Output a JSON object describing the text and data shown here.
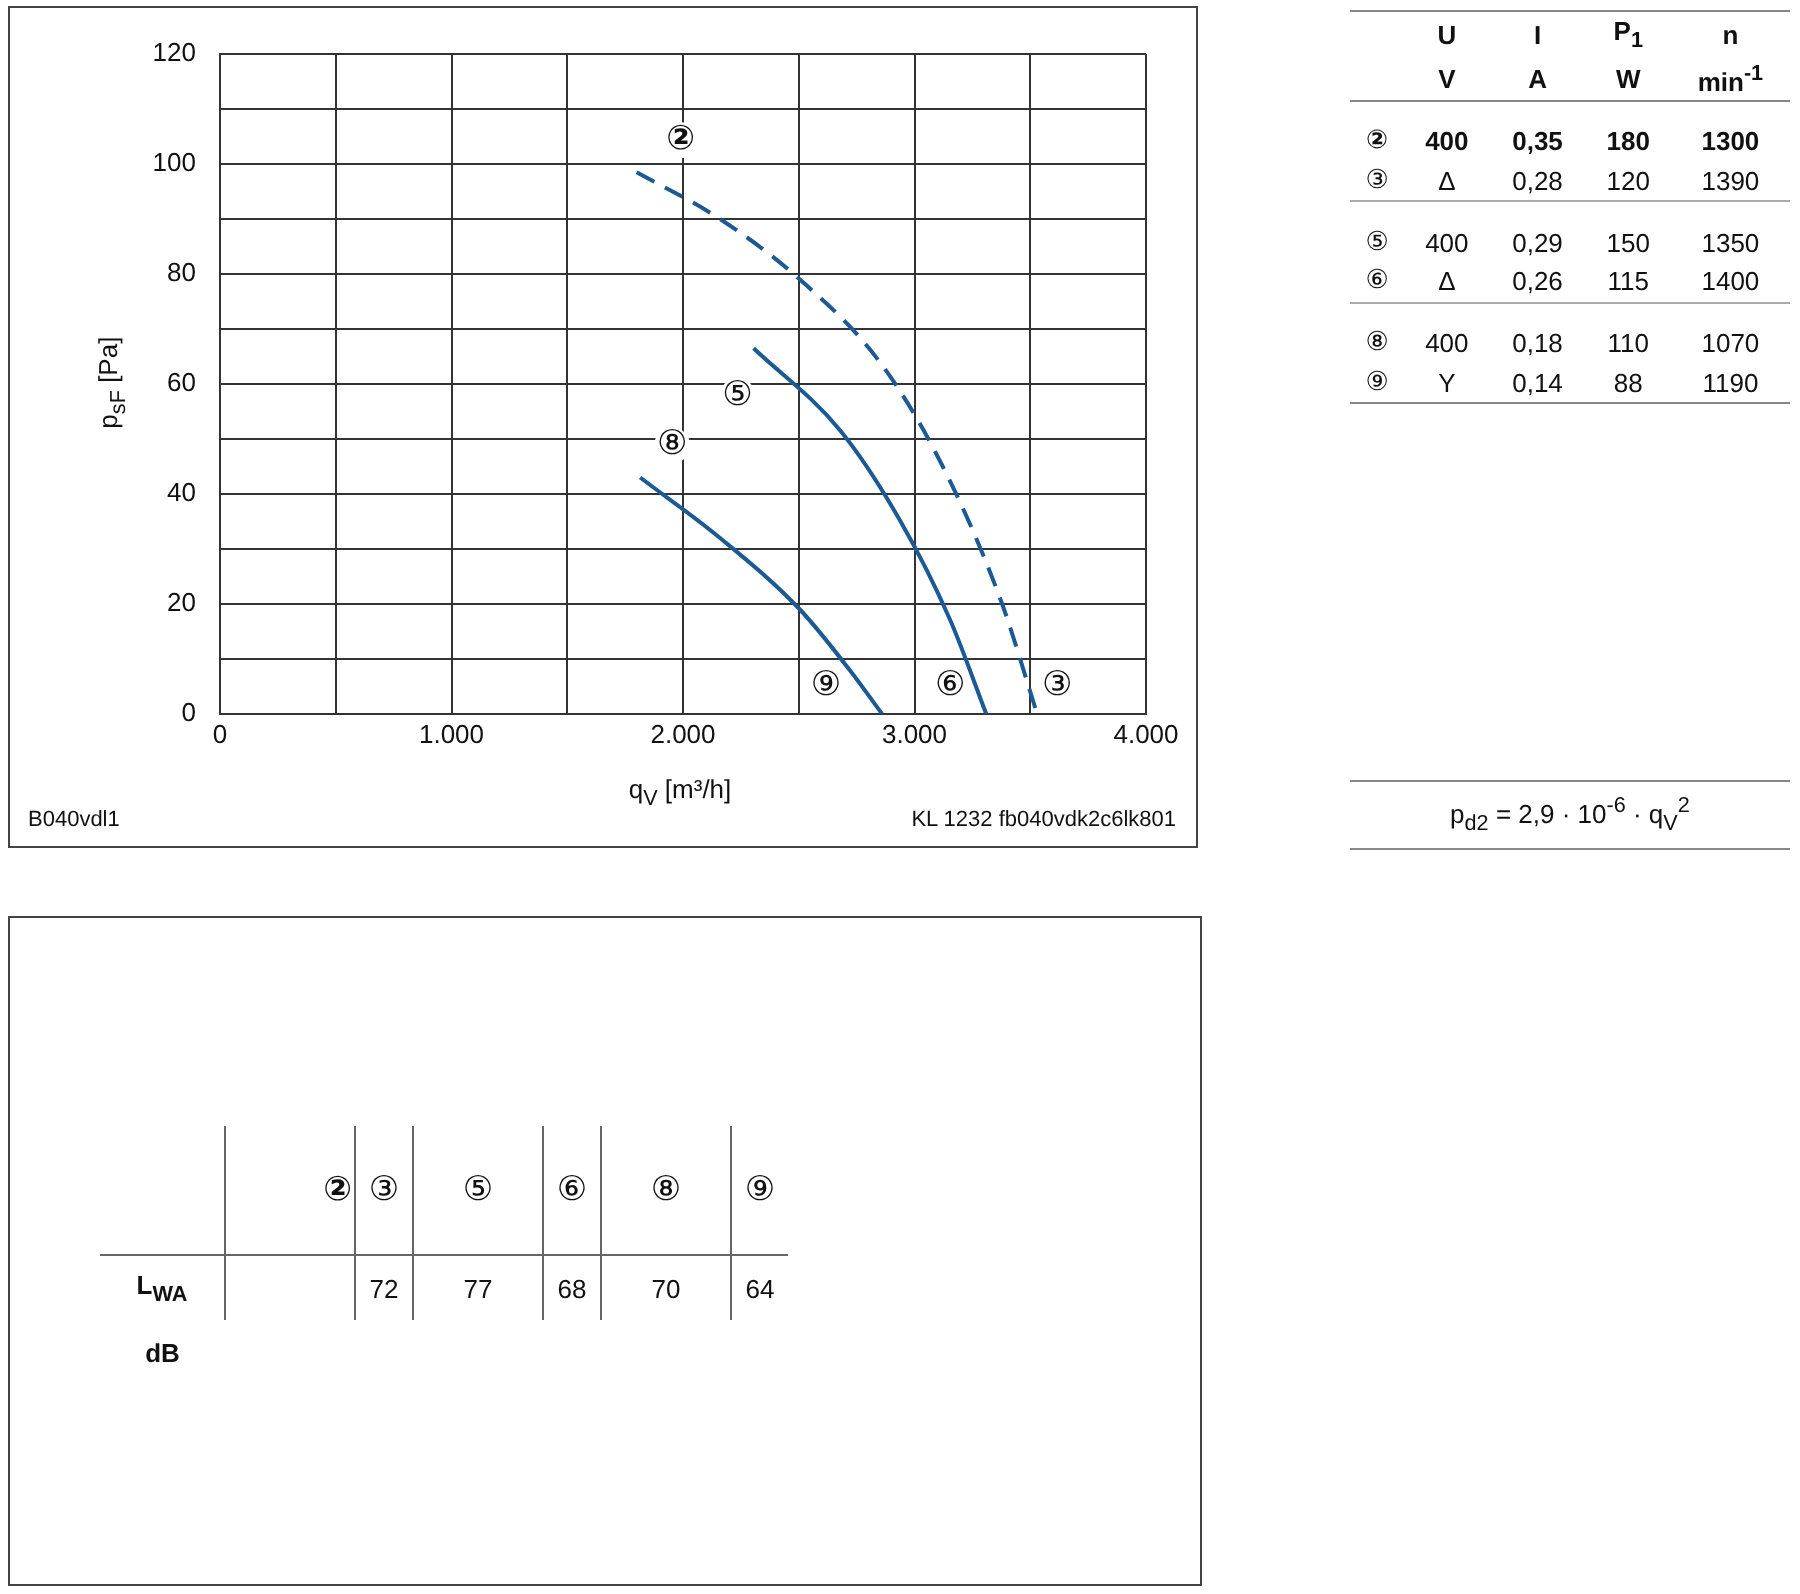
{
  "chart_data": {
    "type": "line",
    "xlabel": "q$_{V}$ [m³/h]",
    "ylabel": "p$_{sF}$ [Pa]",
    "xlim": [
      0,
      4000
    ],
    "ylim": [
      0,
      120
    ],
    "xticks": [
      0,
      {
        "value": 500,
        "label": null
      },
      {
        "value": 1000,
        "label": "1.000"
      },
      {
        "value": 1500,
        "label": null
      },
      {
        "value": 2000,
        "label": "2.000"
      },
      {
        "value": 2500,
        "label": null
      },
      {
        "value": 3000,
        "label": "3.000"
      },
      {
        "value": 3500,
        "label": null
      },
      {
        "value": 4000,
        "label": "4.000"
      }
    ],
    "yticks": [
      0,
      {
        "value": 10,
        "label": null
      },
      20,
      {
        "value": 30,
        "label": null
      },
      40,
      {
        "value": 50,
        "label": null
      },
      60,
      {
        "value": 70,
        "label": null
      },
      80,
      {
        "value": 90,
        "label": null
      },
      100,
      {
        "value": 110,
        "label": null
      },
      120
    ],
    "grid": true,
    "legend": false,
    "marker": "none",
    "series": [
      {
        "color": "#1b5a94",
        "line_style": "dashed",
        "x": [
          1800,
          2160,
          2505,
          2850,
          3110,
          3370,
          3530
        ],
        "values": [
          98.5,
          90,
          79,
          64,
          46,
          21,
          0
        ]
      },
      {
        "color": "#1b5a94",
        "line_style": "solid",
        "x": [
          2305,
          2680,
          2940,
          3155,
          3310
        ],
        "values": [
          66.5,
          51.5,
          35,
          17,
          0
        ]
      },
      {
        "color": "#1b5a94",
        "line_style": "solid",
        "x": [
          1815,
          2160,
          2505,
          2720,
          2860
        ],
        "values": [
          43,
          32,
          19,
          8,
          0
        ]
      }
    ],
    "annotations": [
      "②",
      "⑤",
      "⑧",
      "⑨",
      "⑥",
      "③",
      "B040vdl1",
      "KL 1232 fb040vdk2c6lk801",
      "\tU\tI\tP$_{1}$\tn",
      "\tV\tA\tW\tmin$^{-1}$",
      "②\t400\t0,35\t180\t1300",
      "③\tΔ\t0,28\t120\t1390",
      "⑤\t400\t0,29\t150\t1350",
      "⑥\tΔ\t0,26\t115\t1400",
      "⑧\t400\t0,18\t110\t1070",
      "⑨\tY\t0,14\t88\t1190",
      "p$_{d2}$ = 2,9 · 10$^{-6}$ · q$_{V}$$^{2}$",
      "\t②\t③\t⑤\t⑥\t⑧\t⑨",
      "L$_{WA}$\t\t72\t77\t68\t70\t64",
      "dB"
    ]
  }
}
